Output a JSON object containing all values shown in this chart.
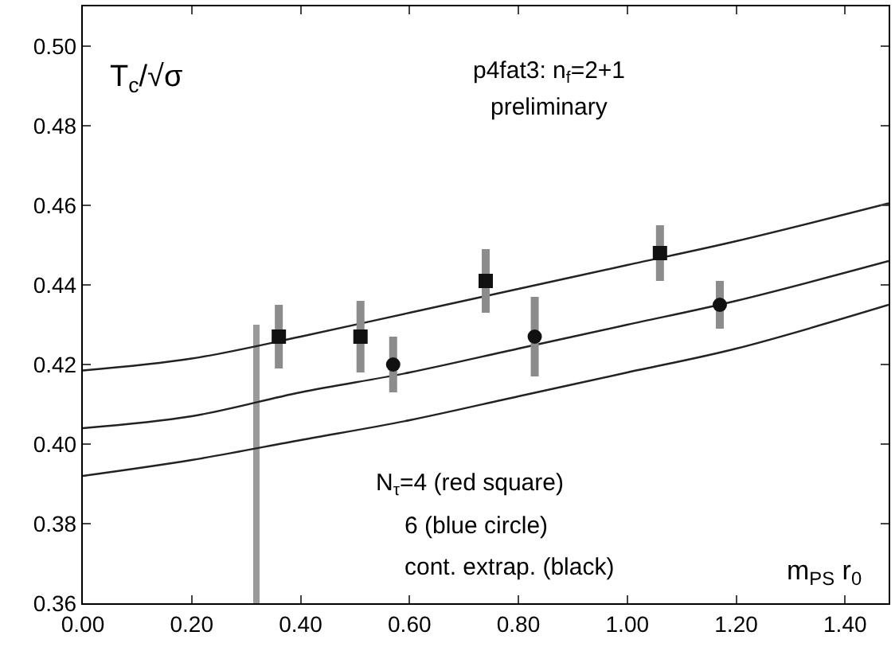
{
  "chart_data": {
    "type": "scatter",
    "ylabel": "T$_{c}$/√σ",
    "xlabel": "m$_{PS}$ r$_{0}$",
    "annotations": [
      "p4fat3: n$_{f}$=2+1",
      "preliminary",
      "N$_{τ}$=4 (red square)",
      "6 (blue circle)",
      "cont. extrap. (black)"
    ],
    "xlim": [
      0,
      1.48
    ],
    "xticks": [
      {
        "value": 0,
        "label": "0.00"
      },
      {
        "value": 0.2,
        "label": "0.20"
      },
      {
        "value": 0.4,
        "label": "0.40"
      },
      {
        "value": 0.6,
        "label": "0.60"
      },
      {
        "value": 0.8,
        "label": "0.80"
      },
      {
        "value": 1,
        "label": "1.00"
      },
      {
        "value": 1.2,
        "label": "1.20"
      },
      {
        "value": 1.4,
        "label": "1.40"
      }
    ],
    "ylim": [
      0.36,
      0.51
    ],
    "yticks": [
      {
        "value": 0.36,
        "label": "0.36"
      },
      {
        "value": 0.38,
        "label": "0.38"
      },
      {
        "value": 0.4,
        "label": "0.40"
      },
      {
        "value": 0.42,
        "label": "0.42"
      },
      {
        "value": 0.44,
        "label": "0.44"
      },
      {
        "value": 0.46,
        "label": "0.46"
      },
      {
        "value": 0.48,
        "label": "0.48"
      },
      {
        "value": 0.5,
        "label": "0.50"
      }
    ],
    "series": [
      {
        "type": "bar",
        "color": "#9a9a9a",
        "x": [
          0.32
        ],
        "base": [
          0.36
        ],
        "values": [
          0.07
        ]
      },
      {
        "type": "line",
        "color": "#222222",
        "x": [
          0,
          0.2,
          0.4,
          0.6,
          0.8,
          1.0,
          1.2,
          1.48
        ],
        "values": [
          0.4185,
          0.4215,
          0.427,
          0.433,
          0.439,
          0.445,
          0.451,
          0.4605
        ]
      },
      {
        "type": "line",
        "color": "#222222",
        "x": [
          0,
          0.2,
          0.4,
          0.6,
          0.8,
          1.0,
          1.2,
          1.48
        ],
        "values": [
          0.404,
          0.407,
          0.413,
          0.418,
          0.424,
          0.43,
          0.436,
          0.446
        ]
      },
      {
        "type": "line",
        "color": "#222222",
        "x": [
          0,
          0.2,
          0.4,
          0.6,
          0.8,
          1.0,
          1.2,
          1.48
        ],
        "values": [
          0.392,
          0.396,
          0.401,
          0.406,
          0.412,
          0.418,
          0.424,
          0.435
        ]
      },
      {
        "marker": "square",
        "color": "#111111",
        "x": [
          0.36,
          0.51,
          0.74,
          1.06
        ],
        "values": [
          0.427,
          0.427,
          0.441,
          0.448
        ],
        "errors": [
          0.008,
          0.009,
          0.008,
          0.007
        ]
      },
      {
        "marker": "circle",
        "color": "#111111",
        "x": [
          0.57,
          0.83,
          1.17
        ],
        "values": [
          0.42,
          0.427,
          0.435
        ],
        "errors": [
          0.007,
          0.01,
          0.006
        ]
      }
    ]
  }
}
